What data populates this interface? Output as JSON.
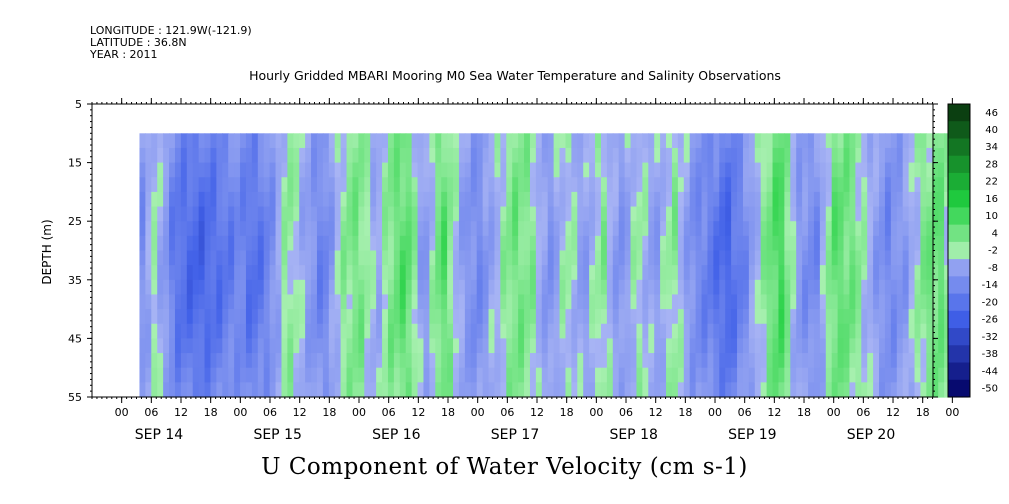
{
  "header": {
    "longitude": "LONGITUDE : 121.9W(-121.9)",
    "latitude": "LATITUDE : 36.8N",
    "year": "YEAR : 2011"
  },
  "title": "Hourly Gridded MBARI Mooring M0 Sea Water Temperature and Salinity Observations",
  "bottom_label": "U Component of Water Velocity (cm s-1)",
  "colors": {
    "positive_dark": "#0a3a10",
    "positive_mid": "#20d040",
    "positive_light": "#a8f0b0",
    "negative_light": "#a8b4f4",
    "negative_mid": "#4060e8",
    "negative_dark": "#000060"
  },
  "chart_data": {
    "type": "heatmap",
    "title": "Hourly Gridded MBARI Mooring M0 Sea Water Temperature and Salinity Observations",
    "xlabel": "",
    "ylabel": "DEPTH (m)",
    "colorbar_label": "U Component of Water Velocity (cm s-1)",
    "ylim": [
      55,
      5
    ],
    "y_ticks": [
      "5",
      "15",
      "25",
      "35",
      "45",
      "55"
    ],
    "x_hour_ticks": [
      "00",
      "06",
      "12",
      "18",
      "00",
      "06",
      "12",
      "18",
      "00",
      "06",
      "12",
      "18",
      "00",
      "06",
      "12",
      "18",
      "00",
      "06",
      "12",
      "18",
      "00",
      "06",
      "12",
      "18",
      "00",
      "06",
      "12",
      "18",
      "00"
    ],
    "x_day_labels": [
      "SEP 14",
      "SEP 15",
      "SEP 16",
      "SEP 17",
      "SEP 18",
      "SEP 19",
      "SEP 20"
    ],
    "data_start_day": 13.9,
    "data_end_day": 20.88,
    "data_top_depth": 10,
    "colorbar_levels": [
      "46",
      "40",
      "34",
      "28",
      "22",
      "16",
      "10",
      "4",
      "-2",
      "-8",
      "-14",
      "-20",
      "-26",
      "-32",
      "-38",
      "-44",
      "-50"
    ],
    "grid": false,
    "legend": "right",
    "pattern": [
      {
        "day": 13.95,
        "u": -8
      },
      {
        "day": 14.0,
        "u": 2
      },
      {
        "day": 14.1,
        "u": -4
      },
      {
        "day": 14.2,
        "u": -14
      },
      {
        "day": 14.4,
        "u": -18
      },
      {
        "day": 14.6,
        "u": -14
      },
      {
        "day": 14.75,
        "u": -10
      },
      {
        "day": 14.85,
        "u": -16
      },
      {
        "day": 15.0,
        "u": -10
      },
      {
        "day": 15.15,
        "u": 4
      },
      {
        "day": 15.3,
        "u": -4
      },
      {
        "day": 15.45,
        "u": -12
      },
      {
        "day": 15.6,
        "u": 2
      },
      {
        "day": 15.75,
        "u": 6
      },
      {
        "day": 15.9,
        "u": -4
      },
      {
        "day": 16.0,
        "u": 4
      },
      {
        "day": 16.15,
        "u": 10
      },
      {
        "day": 16.3,
        "u": -8
      },
      {
        "day": 16.45,
        "u": 10
      },
      {
        "day": 16.6,
        "u": -4
      },
      {
        "day": 16.75,
        "u": -10
      },
      {
        "day": 16.9,
        "u": -2
      },
      {
        "day": 17.05,
        "u": 6
      },
      {
        "day": 17.2,
        "u": 4
      },
      {
        "day": 17.35,
        "u": -8
      },
      {
        "day": 17.5,
        "u": 2
      },
      {
        "day": 17.65,
        "u": -6
      },
      {
        "day": 17.8,
        "u": 4
      },
      {
        "day": 17.95,
        "u": -8
      },
      {
        "day": 18.1,
        "u": 2
      },
      {
        "day": 18.25,
        "u": -6
      },
      {
        "day": 18.4,
        "u": 4
      },
      {
        "day": 18.55,
        "u": -8
      },
      {
        "day": 18.7,
        "u": -12
      },
      {
        "day": 18.85,
        "u": -18
      },
      {
        "day": 19.0,
        "u": -10
      },
      {
        "day": 19.15,
        "u": 2
      },
      {
        "day": 19.3,
        "u": 12
      },
      {
        "day": 19.45,
        "u": -6
      },
      {
        "day": 19.6,
        "u": -10
      },
      {
        "day": 19.75,
        "u": 8
      },
      {
        "day": 19.9,
        "u": 6
      },
      {
        "day": 20.05,
        "u": -2
      },
      {
        "day": 20.2,
        "u": -10
      },
      {
        "day": 20.35,
        "u": -6
      },
      {
        "day": 20.5,
        "u": 4
      },
      {
        "day": 20.65,
        "u": 8
      },
      {
        "day": 20.8,
        "u": -8
      }
    ]
  }
}
